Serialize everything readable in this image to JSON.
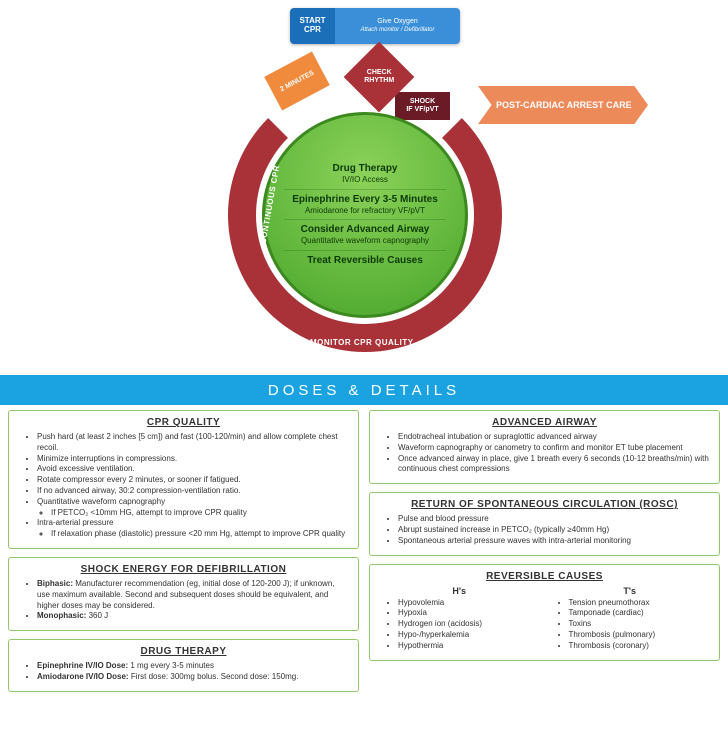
{
  "colors": {
    "blue_dark": "#1a6fb8",
    "blue_light": "#3a8fd8",
    "maroon": "#a93238",
    "maroon_dark": "#6a1b26",
    "orange": "#f08a3c",
    "peach": "#ec8a5a",
    "green_light": "#8cd25a",
    "green_dark": "#4aa02c",
    "divider_blue": "#1aa3e0",
    "panel_border": "#8fc96b"
  },
  "start": {
    "left": "START CPR",
    "right_title": "Give Oxygen",
    "right_sub": "Attach monitor / Defibrillator"
  },
  "diamond": "CHECK RHYTHM",
  "two_minutes": "2 MINUTES",
  "shock": {
    "line1": "SHOCK",
    "line2": "IF VF/pVT"
  },
  "post_care": "POST-CARDIAC ARREST CARE",
  "ring": {
    "left": "CONTINUOUS CPR",
    "right": "CONTINUOUS CPR",
    "bottom": "MONITOR CPR QUALITY"
  },
  "green_sections": [
    {
      "head": "Drug Therapy",
      "sub": "IV/IO Access"
    },
    {
      "head": "Epinephrine Every 3-5 Minutes",
      "sub": "Amiodarone for refractory VF/pVT"
    },
    {
      "head": "Consider Advanced Airway",
      "sub": "Quantitative waveform capnography"
    },
    {
      "head": "Treat Reversible Causes",
      "sub": ""
    }
  ],
  "divider": "DOSES & DETAILS",
  "panels": {
    "cpr_quality": {
      "title": "CPR QUALITY",
      "items": [
        "Push hard (at least 2 inches [5 cm]) and fast (100-120/min) and allow complete chest recoil.",
        "Minimize interruptions in compressions.",
        "Avoid excessive ventilation.",
        "Rotate compressor every 2 minutes, or sooner if fatigued.",
        "If no advanced airway, 30:2 compression-ventilation ratio.",
        "Quantitative waveform capnography",
        "Intra-arterial pressure"
      ],
      "sub_capno": "If PETCO₂ <10mm HG, attempt to improve CPR quality",
      "sub_intra": "If relaxation phase (diastolic) pressure <20 mm Hg, attempt to improve CPR quality"
    },
    "shock_energy": {
      "title": "SHOCK ENERGY FOR DEFIBRILLATION",
      "biphasic_label": "Biphasic:",
      "biphasic": "Manufacturer recommendation (eg, initial dose of 120-200 J); if unknown, use maximum available. Second and subsequent doses should be equivalent, and higher doses may be considered.",
      "monophasic_label": "Monophasic:",
      "monophasic": "360 J"
    },
    "drug_therapy": {
      "title": "DRUG THERAPY",
      "epi_label": "Epinephrine IV/IO Dose:",
      "epi": "1 mg every 3-5 minutes",
      "amio_label": "Amiodarone IV/IO Dose:",
      "amio": "First dose: 300mg bolus. Second dose: 150mg."
    },
    "advanced_airway": {
      "title": "ADVANCED AIRWAY",
      "items": [
        "Endotracheal intubation or supraglottic advanced airway",
        "Waveform capnography or canometry to confirm and monitor ET tube placement",
        "Once advanced airway in place, give 1 breath every 6 seconds (10-12 breaths/min) with continuous chest compressions"
      ]
    },
    "rosc": {
      "title": "RETURN OF SPONTANEOUS CIRCULATION (ROSC)",
      "items": [
        "Pulse and blood pressure",
        "Abrupt sustained increase in PETCO₂ (typically ≥40mm Hg)",
        "Spontaneous arterial pressure waves with intra-arterial monitoring"
      ]
    },
    "reversible": {
      "title": "REVERSIBLE CAUSES",
      "hs_title": "H's",
      "hs": [
        "Hypovolemia",
        "Hypoxia",
        "Hydrogen ion (acidosis)",
        "Hypo-/hyperkalemia",
        "Hypothermia"
      ],
      "ts_title": "T's",
      "ts": [
        "Tension pneumothorax",
        "Tamponade (cardiac)",
        "Toxins",
        "Thrombosis (pulmonary)",
        "Thrombosis (coronary)"
      ]
    }
  }
}
